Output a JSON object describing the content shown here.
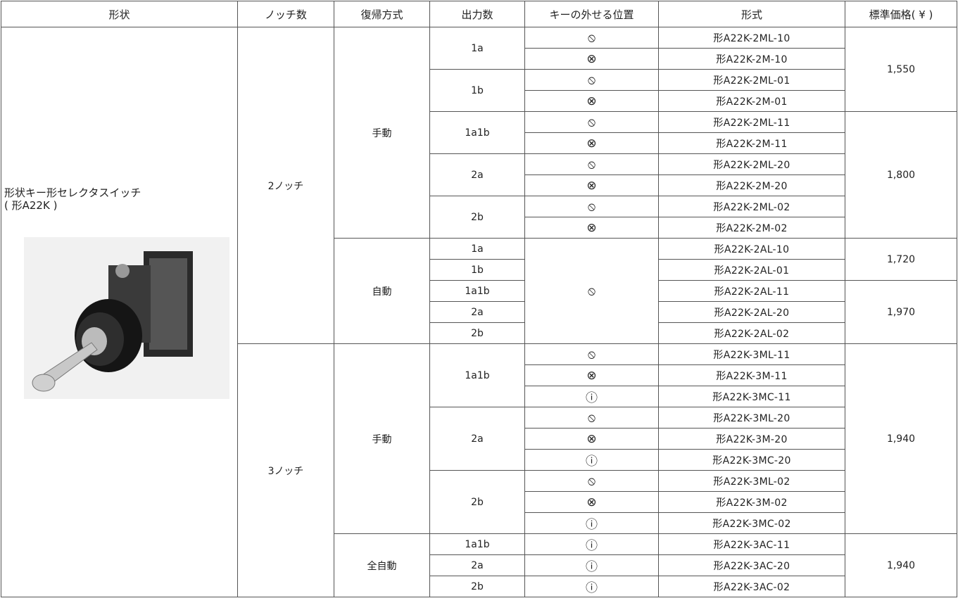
{
  "header": [
    "形状",
    "ノッチ数",
    "復帰方式",
    "出力数",
    "キーの外せる位置",
    "形式",
    "標準価格( ¥ )"
  ],
  "shape": {
    "name": "形状キー形セレクタスイッチ",
    "model": "( 形A22K )"
  },
  "rows": [
    {
      "notch": "2ノッチ",
      "mode": "手動",
      "output": "1a",
      "key": "⦸",
      "model": "形A22K-2ML-10",
      "price": "1,550"
    },
    {
      "key": "⊗",
      "model": "形A22K-2M-10"
    },
    {
      "output": "1b",
      "key": "⦸",
      "model": "形A22K-2ML-01"
    },
    {
      "key": "⊗",
      "model": "形A22K-2M-01"
    },
    {
      "output": "1a1b",
      "key": "⦸",
      "model": "形A22K-2ML-11",
      "price": "1,800"
    },
    {
      "key": "⊗",
      "model": "形A22K-2M-11"
    },
    {
      "output": "2a",
      "key": "⦸",
      "model": "形A22K-2ML-20"
    },
    {
      "key": "⊗",
      "model": "形A22K-2M-20"
    },
    {
      "output": "2b",
      "key": "⦸",
      "model": "形A22K-2ML-02"
    },
    {
      "key": "⊗",
      "model": "形A22K-2M-02"
    },
    {
      "mode": "自動",
      "output": "1a",
      "key": "⦸",
      "model": "形A22K-2AL-10",
      "price": "1,720"
    },
    {
      "output": "1b",
      "model": "形A22K-2AL-01"
    },
    {
      "output": "1a1b",
      "model": "形A22K-2AL-11",
      "price": "1,970"
    },
    {
      "output": "2a",
      "model": "形A22K-2AL-20"
    },
    {
      "output": "2b",
      "model": "形A22K-2AL-02"
    },
    {
      "notch": "3ノッチ",
      "mode": "手動",
      "output": "1a1b",
      "key": "⦸",
      "model": "形A22K-3ML-11",
      "price": "1,940"
    },
    {
      "key": "⊗",
      "model": "形A22K-3M-11"
    },
    {
      "key": "ⓘ",
      "model": "形A22K-3MC-11"
    },
    {
      "output": "2a",
      "key": "⦸",
      "model": "形A22K-3ML-20"
    },
    {
      "key": "⊗",
      "model": "形A22K-3M-20"
    },
    {
      "key": "ⓘ",
      "model": "形A22K-3MC-20"
    },
    {
      "output": "2b",
      "key": "⦸",
      "model": "形A22K-3ML-02"
    },
    {
      "key": "⊗",
      "model": "形A22K-3M-02"
    },
    {
      "key": "ⓘ",
      "model": "形A22K-3MC-02"
    },
    {
      "mode": "全自動",
      "output": "1a1b",
      "key": "ⓘ",
      "model": "形A22K-3AC-11",
      "price": "1,940"
    },
    {
      "output": "2a",
      "key": "ⓘ",
      "model": "形A22K-3AC-20"
    },
    {
      "output": "2b",
      "key": "ⓘ",
      "model": "形A22K-3AC-02"
    }
  ]
}
